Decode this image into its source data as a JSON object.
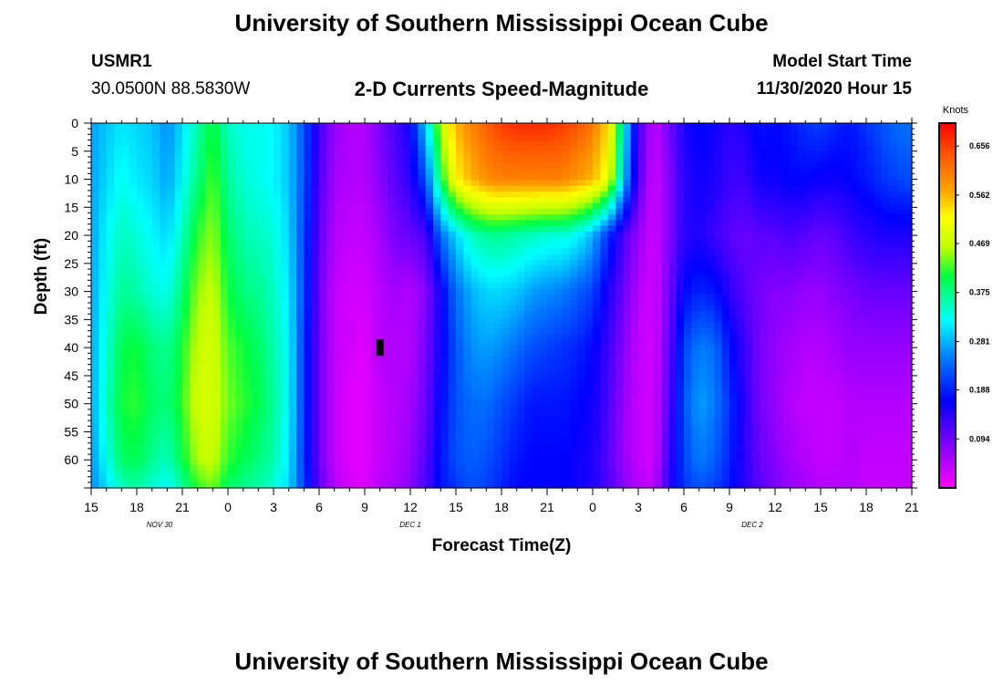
{
  "header": {
    "title_top": "University of Southern Mississippi Ocean Cube",
    "station": "USMR1",
    "location": "30.0500N 88.5830W",
    "plot_title": "2-D Currents Speed-Magnitude",
    "model_start_label": "Model Start Time",
    "model_start_value": "11/30/2020 Hour 15",
    "title_bottom": "University of Southern Mississippi Ocean Cube"
  },
  "chart_data": {
    "type": "heatmap",
    "title": "2-D Currents Speed-Magnitude",
    "xlabel": "Forecast Time(Z)",
    "ylabel": "Depth (ft)",
    "x_tick_labels": [
      "15",
      "18",
      "21",
      "0",
      "3",
      "6",
      "9",
      "12",
      "15",
      "18",
      "21",
      "0",
      "3",
      "6",
      "9",
      "12",
      "15",
      "18",
      "21"
    ],
    "x_range_hours": [
      0,
      54
    ],
    "date_labels": [
      {
        "text": "NOV  30",
        "hour": 4.5
      },
      {
        "text": "DEC  1",
        "hour": 21
      },
      {
        "text": "DEC  2",
        "hour": 43.5
      }
    ],
    "y_tick_labels": [
      "0",
      "5",
      "10",
      "15",
      "20",
      "25",
      "30",
      "35",
      "40",
      "45",
      "50",
      "55",
      "60"
    ],
    "y_range_ft": [
      0,
      65
    ],
    "colorbar": {
      "units": "Knots",
      "min": 0,
      "max": 0.7,
      "tick_values": [
        "0.656",
        "0.562",
        "0.469",
        "0.375",
        "0.281",
        "0.188",
        "0.094"
      ]
    },
    "speed_profiles": {
      "time_hours": [
        0,
        1,
        2,
        3,
        4,
        5,
        6,
        7,
        8,
        9,
        10,
        11,
        12,
        13,
        14,
        15,
        16,
        17,
        18,
        19,
        20,
        21,
        22,
        23,
        24,
        25,
        26,
        27,
        28,
        29,
        30,
        31,
        32,
        33,
        34,
        35,
        36,
        37,
        38,
        39,
        40,
        41,
        42,
        43,
        44,
        45,
        46,
        47,
        48,
        49,
        50,
        51,
        52,
        53,
        54
      ],
      "depth_ft": [
        0,
        10,
        20,
        30,
        40,
        50,
        60,
        65
      ],
      "speed_knots": [
        [
          0.27,
          0.27,
          0.27,
          0.27,
          0.27,
          0.27,
          0.26,
          0.26
        ],
        [
          0.29,
          0.3,
          0.32,
          0.33,
          0.34,
          0.35,
          0.33,
          0.3
        ],
        [
          0.31,
          0.33,
          0.35,
          0.37,
          0.4,
          0.41,
          0.39,
          0.35
        ],
        [
          0.3,
          0.31,
          0.34,
          0.36,
          0.41,
          0.42,
          0.4,
          0.36
        ],
        [
          0.29,
          0.3,
          0.32,
          0.34,
          0.38,
          0.39,
          0.37,
          0.34
        ],
        [
          0.26,
          0.27,
          0.3,
          0.33,
          0.37,
          0.38,
          0.35,
          0.32
        ],
        [
          0.3,
          0.32,
          0.35,
          0.38,
          0.41,
          0.42,
          0.4,
          0.36
        ],
        [
          0.36,
          0.38,
          0.42,
          0.45,
          0.47,
          0.48,
          0.46,
          0.42
        ],
        [
          0.41,
          0.43,
          0.45,
          0.47,
          0.48,
          0.48,
          0.47,
          0.44
        ],
        [
          0.35,
          0.37,
          0.39,
          0.41,
          0.43,
          0.44,
          0.42,
          0.39
        ],
        [
          0.33,
          0.34,
          0.36,
          0.38,
          0.41,
          0.42,
          0.4,
          0.37
        ],
        [
          0.33,
          0.33,
          0.35,
          0.37,
          0.39,
          0.4,
          0.38,
          0.36
        ],
        [
          0.32,
          0.32,
          0.34,
          0.35,
          0.36,
          0.37,
          0.36,
          0.34
        ],
        [
          0.29,
          0.29,
          0.3,
          0.31,
          0.32,
          0.32,
          0.31,
          0.3
        ],
        [
          0.22,
          0.22,
          0.21,
          0.21,
          0.2,
          0.2,
          0.2,
          0.21
        ],
        [
          0.13,
          0.12,
          0.11,
          0.1,
          0.1,
          0.1,
          0.1,
          0.11
        ],
        [
          0.07,
          0.06,
          0.05,
          0.04,
          0.04,
          0.04,
          0.04,
          0.05
        ],
        [
          0.05,
          0.05,
          0.04,
          0.03,
          0.03,
          0.02,
          0.02,
          0.03
        ],
        [
          0.05,
          0.05,
          0.04,
          0.03,
          0.02,
          0.02,
          0.02,
          0.02
        ],
        [
          0.09,
          0.08,
          0.06,
          0.05,
          0.05,
          0.04,
          0.04,
          0.05
        ],
        [
          0.12,
          0.11,
          0.09,
          0.06,
          0.05,
          0.05,
          0.05,
          0.06
        ],
        [
          0.16,
          0.14,
          0.1,
          0.05,
          0.05,
          0.06,
          0.07,
          0.08
        ],
        [
          0.3,
          0.22,
          0.12,
          0.08,
          0.09,
          0.1,
          0.11,
          0.12
        ],
        [
          0.47,
          0.4,
          0.24,
          0.16,
          0.16,
          0.17,
          0.18,
          0.18
        ],
        [
          0.56,
          0.52,
          0.3,
          0.24,
          0.22,
          0.22,
          0.22,
          0.2
        ],
        [
          0.6,
          0.56,
          0.35,
          0.28,
          0.26,
          0.24,
          0.23,
          0.22
        ],
        [
          0.63,
          0.59,
          0.37,
          0.3,
          0.27,
          0.24,
          0.22,
          0.21
        ],
        [
          0.66,
          0.6,
          0.37,
          0.3,
          0.26,
          0.22,
          0.2,
          0.19
        ],
        [
          0.67,
          0.6,
          0.36,
          0.29,
          0.24,
          0.2,
          0.18,
          0.17
        ],
        [
          0.67,
          0.6,
          0.35,
          0.27,
          0.22,
          0.18,
          0.17,
          0.17
        ],
        [
          0.67,
          0.6,
          0.34,
          0.26,
          0.21,
          0.18,
          0.17,
          0.17
        ],
        [
          0.66,
          0.6,
          0.34,
          0.25,
          0.2,
          0.18,
          0.17,
          0.17
        ],
        [
          0.64,
          0.58,
          0.32,
          0.23,
          0.19,
          0.17,
          0.16,
          0.16
        ],
        [
          0.61,
          0.56,
          0.28,
          0.21,
          0.17,
          0.16,
          0.15,
          0.15
        ],
        [
          0.54,
          0.5,
          0.2,
          0.15,
          0.13,
          0.12,
          0.11,
          0.12
        ],
        [
          0.34,
          0.3,
          0.12,
          0.1,
          0.08,
          0.07,
          0.07,
          0.08
        ],
        [
          0.13,
          0.12,
          0.07,
          0.05,
          0.04,
          0.04,
          0.04,
          0.05
        ],
        [
          0.04,
          0.03,
          0.03,
          0.03,
          0.03,
          0.03,
          0.03,
          0.04
        ],
        [
          0.09,
          0.08,
          0.08,
          0.09,
          0.1,
          0.11,
          0.13,
          0.14
        ],
        [
          0.15,
          0.14,
          0.14,
          0.17,
          0.21,
          0.22,
          0.21,
          0.2
        ],
        [
          0.17,
          0.16,
          0.15,
          0.19,
          0.25,
          0.27,
          0.25,
          0.22
        ],
        [
          0.16,
          0.15,
          0.13,
          0.18,
          0.24,
          0.25,
          0.23,
          0.21
        ],
        [
          0.14,
          0.13,
          0.11,
          0.14,
          0.18,
          0.2,
          0.19,
          0.18
        ],
        [
          0.15,
          0.13,
          0.1,
          0.11,
          0.13,
          0.14,
          0.14,
          0.14
        ],
        [
          0.18,
          0.16,
          0.11,
          0.09,
          0.09,
          0.09,
          0.1,
          0.11
        ],
        [
          0.17,
          0.16,
          0.11,
          0.08,
          0.07,
          0.07,
          0.08,
          0.09
        ],
        [
          0.18,
          0.17,
          0.12,
          0.08,
          0.06,
          0.05,
          0.06,
          0.07
        ],
        [
          0.2,
          0.17,
          0.11,
          0.07,
          0.05,
          0.04,
          0.05,
          0.06
        ],
        [
          0.21,
          0.16,
          0.1,
          0.07,
          0.05,
          0.04,
          0.04,
          0.05
        ],
        [
          0.19,
          0.16,
          0.11,
          0.08,
          0.06,
          0.04,
          0.04,
          0.05
        ],
        [
          0.18,
          0.17,
          0.13,
          0.09,
          0.07,
          0.05,
          0.05,
          0.05
        ],
        [
          0.2,
          0.18,
          0.14,
          0.1,
          0.07,
          0.05,
          0.04,
          0.04
        ],
        [
          0.22,
          0.2,
          0.15,
          0.1,
          0.07,
          0.05,
          0.04,
          0.04
        ],
        [
          0.24,
          0.21,
          0.15,
          0.1,
          0.07,
          0.05,
          0.04,
          0.04
        ],
        [
          0.24,
          0.22,
          0.15,
          0.1,
          0.07,
          0.05,
          0.04,
          0.04
        ]
      ]
    },
    "marker": {
      "hour": 19,
      "depth_ft": 40
    }
  }
}
